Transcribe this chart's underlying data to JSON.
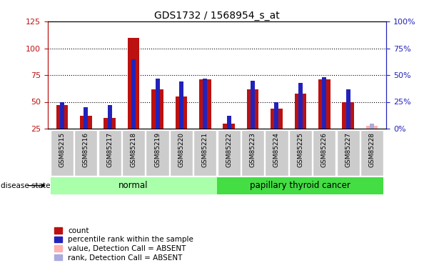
{
  "title": "GDS1732 / 1568954_s_at",
  "samples": [
    "GSM85215",
    "GSM85216",
    "GSM85217",
    "GSM85218",
    "GSM85219",
    "GSM85220",
    "GSM85221",
    "GSM85222",
    "GSM85223",
    "GSM85224",
    "GSM85225",
    "GSM85226",
    "GSM85227",
    "GSM85228"
  ],
  "red_values": [
    47,
    37,
    35,
    110,
    62,
    55,
    71,
    30,
    62,
    44,
    58,
    71,
    50,
    null
  ],
  "blue_values": [
    25,
    20,
    22,
    65,
    47,
    44,
    47,
    12,
    45,
    25,
    43,
    48,
    37,
    null
  ],
  "absent_red": [
    null,
    null,
    null,
    null,
    null,
    null,
    null,
    null,
    null,
    null,
    null,
    null,
    null,
    28
  ],
  "absent_blue": [
    null,
    null,
    null,
    null,
    null,
    null,
    null,
    null,
    null,
    null,
    null,
    null,
    null,
    5
  ],
  "normal_group_indices": [
    0,
    1,
    2,
    3,
    4,
    5,
    6
  ],
  "cancer_group_indices": [
    7,
    8,
    9,
    10,
    11,
    12,
    13
  ],
  "ylim_left": [
    25,
    125
  ],
  "ylim_right": [
    0,
    100
  ],
  "yticks_left": [
    25,
    50,
    75,
    100,
    125
  ],
  "yticks_right": [
    0,
    25,
    50,
    75,
    100
  ],
  "yticklabels_right": [
    "0%",
    "25%",
    "50%",
    "75%",
    "100%"
  ],
  "red_color": "#BB1111",
  "blue_color": "#2222BB",
  "absent_red_color": "#FFB0B0",
  "absent_blue_color": "#AAAADD",
  "normal_bg": "#AAFFAA",
  "cancer_bg": "#44DD44",
  "xticklabel_bg": "#CCCCCC",
  "red_bar_width": 0.5,
  "blue_bar_width": 0.18,
  "disease_state_label": "disease state",
  "normal_label": "normal",
  "cancer_label": "papillary thyroid cancer",
  "legend_items": [
    {
      "label": "count",
      "color": "#BB1111"
    },
    {
      "label": "percentile rank within the sample",
      "color": "#2222BB"
    },
    {
      "label": "value, Detection Call = ABSENT",
      "color": "#FFB0B0"
    },
    {
      "label": "rank, Detection Call = ABSENT",
      "color": "#AAAADD"
    }
  ],
  "grid_yticks": [
    50,
    75,
    100
  ],
  "figsize": [
    6.08,
    3.75
  ],
  "dpi": 100
}
